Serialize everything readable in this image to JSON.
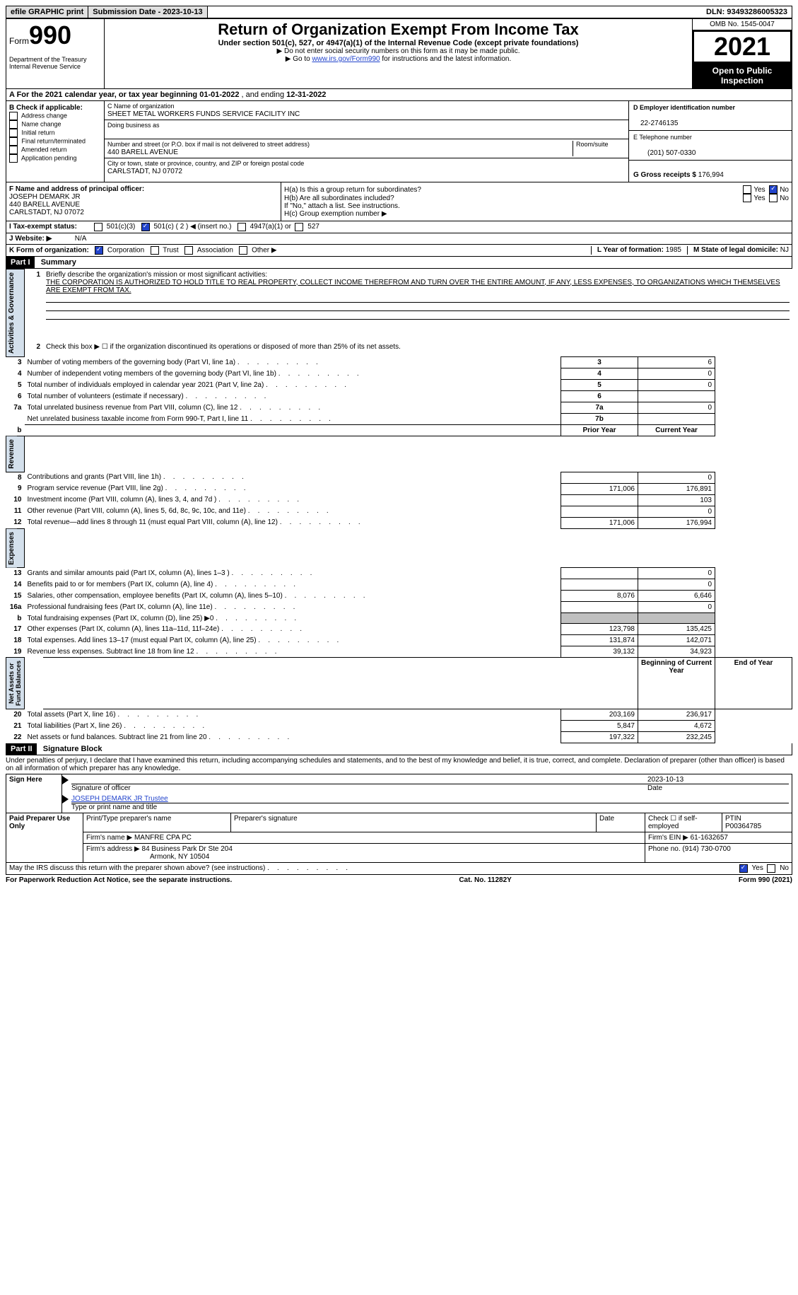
{
  "topbar": {
    "efile": "efile GRAPHIC print",
    "submission_label": "Submission Date - 2023-10-13",
    "dln": "DLN: 93493286005323"
  },
  "header": {
    "form_label": "Form",
    "form_num": "990",
    "title": "Return of Organization Exempt From Income Tax",
    "subtitle": "Under section 501(c), 527, or 4947(a)(1) of the Internal Revenue Code (except private foundations)",
    "inst1": "▶ Do not enter social security numbers on this form as it may be made public.",
    "inst2_pre": "▶ Go to ",
    "inst2_link": "www.irs.gov/Form990",
    "inst2_post": " for instructions and the latest information.",
    "dept": "Department of the Treasury\nInternal Revenue Service",
    "omb": "OMB No. 1545-0047",
    "year": "2021",
    "open": "Open to Public Inspection"
  },
  "sectionA": {
    "text_pre": "A For the 2021 calendar year, or tax year beginning ",
    "begin": "01-01-2022",
    "mid": "  , and ending ",
    "end": "12-31-2022"
  },
  "colB": {
    "header": "B Check if applicable:",
    "items": [
      "Address change",
      "Name change",
      "Initial return",
      "Final return/terminated",
      "Amended return",
      "Application pending"
    ]
  },
  "colC": {
    "c_label": "C Name of organization",
    "org_name": "SHEET METAL WORKERS FUNDS SERVICE FACILITY INC",
    "dba_label": "Doing business as",
    "addr_label": "Number and street (or P.O. box if mail is not delivered to street address)",
    "room_label": "Room/suite",
    "street": "440 BARELL AVENUE",
    "city_label": "City or town, state or province, country, and ZIP or foreign postal code",
    "city": "CARLSTADT, NJ  07072"
  },
  "colD": {
    "d_label": "D Employer identification number",
    "ein": "22-2746135",
    "e_label": "E Telephone number",
    "phone": "(201) 507-0330",
    "g_label": "G Gross receipts $ ",
    "gross": "176,994"
  },
  "rowF": {
    "f_label": "F Name and address of principal officer:",
    "name": "JOSEPH DEMARK JR",
    "addr1": "440 BARELL AVENUE",
    "addr2": "CARLSTADT, NJ  07072",
    "ha": "H(a)  Is this a group return for subordinates?",
    "hb": "H(b)  Are all subordinates included?",
    "hnote": "If \"No,\" attach a list. See instructions.",
    "hc": "H(c)  Group exemption number ▶",
    "yes": "Yes",
    "no": "No"
  },
  "rowI": {
    "label": "I  Tax-exempt status:",
    "o1": "501(c)(3)",
    "o2": "501(c) ( 2 ) ◀ (insert no.)",
    "o3": "4947(a)(1) or",
    "o4": "527"
  },
  "rowJ": {
    "label": "J  Website: ▶",
    "val": "N/A"
  },
  "rowK": {
    "label": "K Form of organization:",
    "o1": "Corporation",
    "o2": "Trust",
    "o3": "Association",
    "o4": "Other ▶",
    "l_label": "L Year of formation: ",
    "l_val": "1985",
    "m_label": "M State of legal domicile: ",
    "m_val": "NJ"
  },
  "part1": {
    "header": "Part I",
    "title": "Summary",
    "q1": "Briefly describe the organization's mission or most significant activities:",
    "mission": "THE CORPORATION IS AUTHORIZED TO HOLD TITLE TO REAL PROPERTY, COLLECT INCOME THEREFROM AND TURN OVER THE ENTIRE AMOUNT, IF ANY, LESS EXPENSES, TO ORGANIZATIONS WHICH THEMSELVES ARE EXEMPT FROM TAX.",
    "q2": "Check this box ▶ ☐ if the organization discontinued its operations or disposed of more than 25% of its net assets.",
    "lines_ag": [
      {
        "n": "3",
        "t": "Number of voting members of the governing body (Part VI, line 1a)",
        "box": "3",
        "v": "6"
      },
      {
        "n": "4",
        "t": "Number of independent voting members of the governing body (Part VI, line 1b)",
        "box": "4",
        "v": "0"
      },
      {
        "n": "5",
        "t": "Total number of individuals employed in calendar year 2021 (Part V, line 2a)",
        "box": "5",
        "v": "0"
      },
      {
        "n": "6",
        "t": "Total number of volunteers (estimate if necessary)",
        "box": "6",
        "v": ""
      },
      {
        "n": "7a",
        "t": "Total unrelated business revenue from Part VIII, column (C), line 12",
        "box": "7a",
        "v": "0"
      },
      {
        "n": "",
        "t": "Net unrelated business taxable income from Form 990-T, Part I, line 11",
        "box": "7b",
        "v": ""
      }
    ],
    "py_header": "Prior Year",
    "cy_header": "Current Year",
    "rev_lines": [
      {
        "n": "8",
        "t": "Contributions and grants (Part VIII, line 1h)",
        "py": "",
        "cy": "0"
      },
      {
        "n": "9",
        "t": "Program service revenue (Part VIII, line 2g)",
        "py": "171,006",
        "cy": "176,891"
      },
      {
        "n": "10",
        "t": "Investment income (Part VIII, column (A), lines 3, 4, and 7d )",
        "py": "",
        "cy": "103"
      },
      {
        "n": "11",
        "t": "Other revenue (Part VIII, column (A), lines 5, 6d, 8c, 9c, 10c, and 11e)",
        "py": "",
        "cy": "0"
      },
      {
        "n": "12",
        "t": "Total revenue—add lines 8 through 11 (must equal Part VIII, column (A), line 12)",
        "py": "171,006",
        "cy": "176,994"
      }
    ],
    "exp_lines": [
      {
        "n": "13",
        "t": "Grants and similar amounts paid (Part IX, column (A), lines 1–3 )",
        "py": "",
        "cy": "0"
      },
      {
        "n": "14",
        "t": "Benefits paid to or for members (Part IX, column (A), line 4)",
        "py": "",
        "cy": "0"
      },
      {
        "n": "15",
        "t": "Salaries, other compensation, employee benefits (Part IX, column (A), lines 5–10)",
        "py": "8,076",
        "cy": "6,646"
      },
      {
        "n": "16a",
        "t": "Professional fundraising fees (Part IX, column (A), line 11e)",
        "py": "",
        "cy": "0"
      },
      {
        "n": "b",
        "t": "Total fundraising expenses (Part IX, column (D), line 25) ▶0",
        "py": "shaded",
        "cy": "shaded"
      },
      {
        "n": "17",
        "t": "Other expenses (Part IX, column (A), lines 11a–11d, 11f–24e)",
        "py": "123,798",
        "cy": "135,425"
      },
      {
        "n": "18",
        "t": "Total expenses. Add lines 13–17 (must equal Part IX, column (A), line 25)",
        "py": "131,874",
        "cy": "142,071"
      },
      {
        "n": "19",
        "t": "Revenue less expenses. Subtract line 18 from line 12",
        "py": "39,132",
        "cy": "34,923"
      }
    ],
    "na_by": "Beginning of Current Year",
    "na_ey": "End of Year",
    "na_lines": [
      {
        "n": "20",
        "t": "Total assets (Part X, line 16)",
        "py": "203,169",
        "cy": "236,917"
      },
      {
        "n": "21",
        "t": "Total liabilities (Part X, line 26)",
        "py": "5,847",
        "cy": "4,672"
      },
      {
        "n": "22",
        "t": "Net assets or fund balances. Subtract line 21 from line 20",
        "py": "197,322",
        "cy": "232,245"
      }
    ],
    "vlabel_ag": "Activities & Governance",
    "vlabel_rev": "Revenue",
    "vlabel_exp": "Expenses",
    "vlabel_na": "Net Assets or\nFund Balances",
    "b_label": "b"
  },
  "part2": {
    "header": "Part II",
    "title": "Signature Block",
    "penalties": "Under penalties of perjury, I declare that I have examined this return, including accompanying schedules and statements, and to the best of my knowledge and belief, it is true, correct, and complete. Declaration of preparer (other than officer) is based on all information of which preparer has any knowledge.",
    "sign_here": "Sign Here",
    "sig_officer": "Signature of officer",
    "sig_date": "2023-10-13",
    "date_label": "Date",
    "officer_name": "JOSEPH DEMARK JR Trustee",
    "type_name": "Type or print name and title",
    "paid_prep": "Paid Preparer Use Only",
    "pp_name_label": "Print/Type preparer's name",
    "pp_sig_label": "Preparer's signature",
    "pp_date_label": "Date",
    "pp_check": "Check ☐ if self-employed",
    "pp_ptin_label": "PTIN",
    "pp_ptin": "P00364785",
    "firm_name_label": "Firm's name    ▶ ",
    "firm_name": "MANFRE CPA PC",
    "firm_ein_label": "Firm's EIN ▶ ",
    "firm_ein": "61-1632657",
    "firm_addr_label": "Firm's address ▶ ",
    "firm_addr1": "84 Business Park Dr Ste 204",
    "firm_addr2": "Armonk, NY  10504",
    "phone_label": "Phone no. ",
    "phone": "(914) 730-0700",
    "may_irs": "May the IRS discuss this return with the preparer shown above? (see instructions)",
    "yes": "Yes",
    "no": "No"
  },
  "footer": {
    "left": "For Paperwork Reduction Act Notice, see the separate instructions.",
    "mid": "Cat. No. 11282Y",
    "right": "Form 990 (2021)"
  }
}
